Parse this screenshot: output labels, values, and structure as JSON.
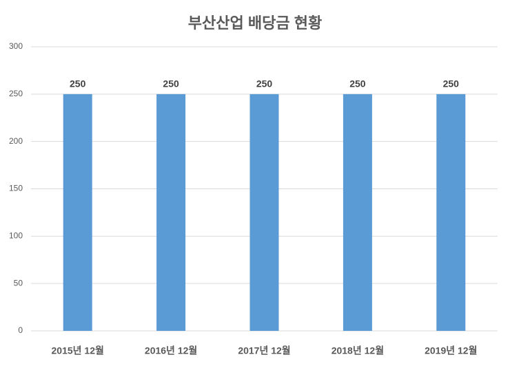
{
  "chart_data": {
    "type": "bar",
    "title": "부산산업 배당금 현황",
    "categories": [
      "2015년 12월",
      "2016년 12월",
      "2017년 12월",
      "2018년 12월",
      "2019년 12월"
    ],
    "values": [
      250,
      250,
      250,
      250,
      250
    ],
    "color": "#5b9bd5",
    "ylim": [
      0,
      300
    ],
    "yticks": [
      0,
      50,
      100,
      150,
      200,
      250,
      300
    ],
    "grid": true
  }
}
